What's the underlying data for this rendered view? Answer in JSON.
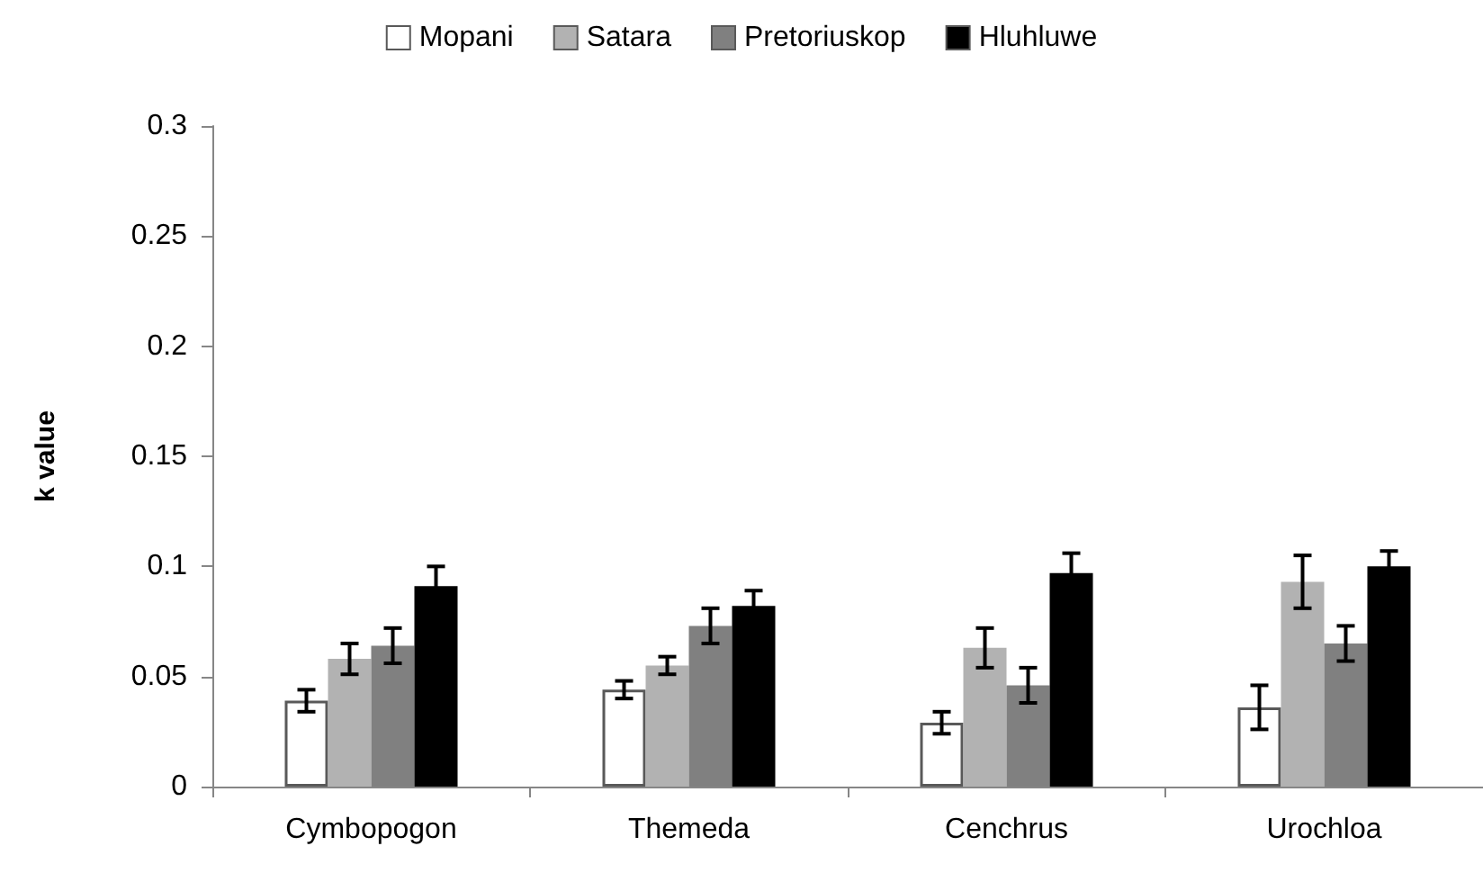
{
  "chart_data": {
    "type": "bar",
    "ylabel": "k value",
    "categories": [
      "Cymbopogon",
      "Themeda",
      "Cenchrus",
      "Urochloa"
    ],
    "series": [
      {
        "name": "Mopani",
        "color": "#ffffff",
        "values": [
          0.039,
          0.044,
          0.029,
          0.036
        ],
        "errors": [
          0.005,
          0.004,
          0.005,
          0.01
        ]
      },
      {
        "name": "Satara",
        "color": "#b2b2b2",
        "values": [
          0.058,
          0.055,
          0.063,
          0.093
        ],
        "errors": [
          0.007,
          0.004,
          0.009,
          0.012
        ]
      },
      {
        "name": "Pretoriuskop",
        "color": "#808080",
        "values": [
          0.064,
          0.073,
          0.046,
          0.065
        ],
        "errors": [
          0.008,
          0.008,
          0.008,
          0.008
        ]
      },
      {
        "name": "Hluhluwe",
        "color": "#000000",
        "values": [
          0.091,
          0.082,
          0.097,
          0.1
        ],
        "errors": [
          0.009,
          0.007,
          0.009,
          0.007
        ]
      }
    ],
    "ylim": [
      0,
      0.3
    ],
    "yticks": [
      0,
      0.05,
      0.1,
      0.15,
      0.2,
      0.25,
      0.3
    ],
    "grid": false,
    "legend": "top"
  }
}
